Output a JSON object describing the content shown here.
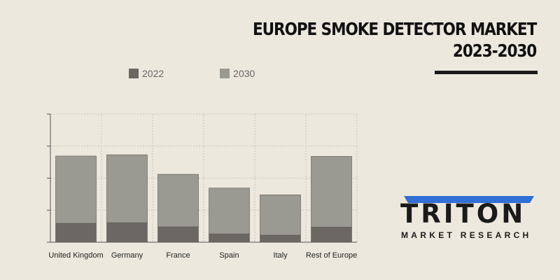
{
  "title": {
    "line1": "EUROPE SMOKE DETECTOR MARKET",
    "line2": "2023-2030"
  },
  "brand": {
    "name": "TRITON",
    "subtitle": "MARKET RESEARCH",
    "accent_color": "#2f6fd6"
  },
  "chart_data": {
    "type": "bar",
    "stacked": true,
    "categories": [
      "United Kingdom",
      "Germany",
      "France",
      "Spain",
      "Italy",
      "Rest of Europe"
    ],
    "series": [
      {
        "name": "2022",
        "color": "#6b6863",
        "values": [
          59,
          61,
          48,
          26,
          22,
          47
        ]
      },
      {
        "name": "2030",
        "color": "#9a9a92",
        "values": [
          210,
          212,
          164,
          143,
          126,
          221
        ]
      }
    ],
    "ylim": [
      0,
      400
    ],
    "grid": true,
    "legend_position": "top"
  }
}
